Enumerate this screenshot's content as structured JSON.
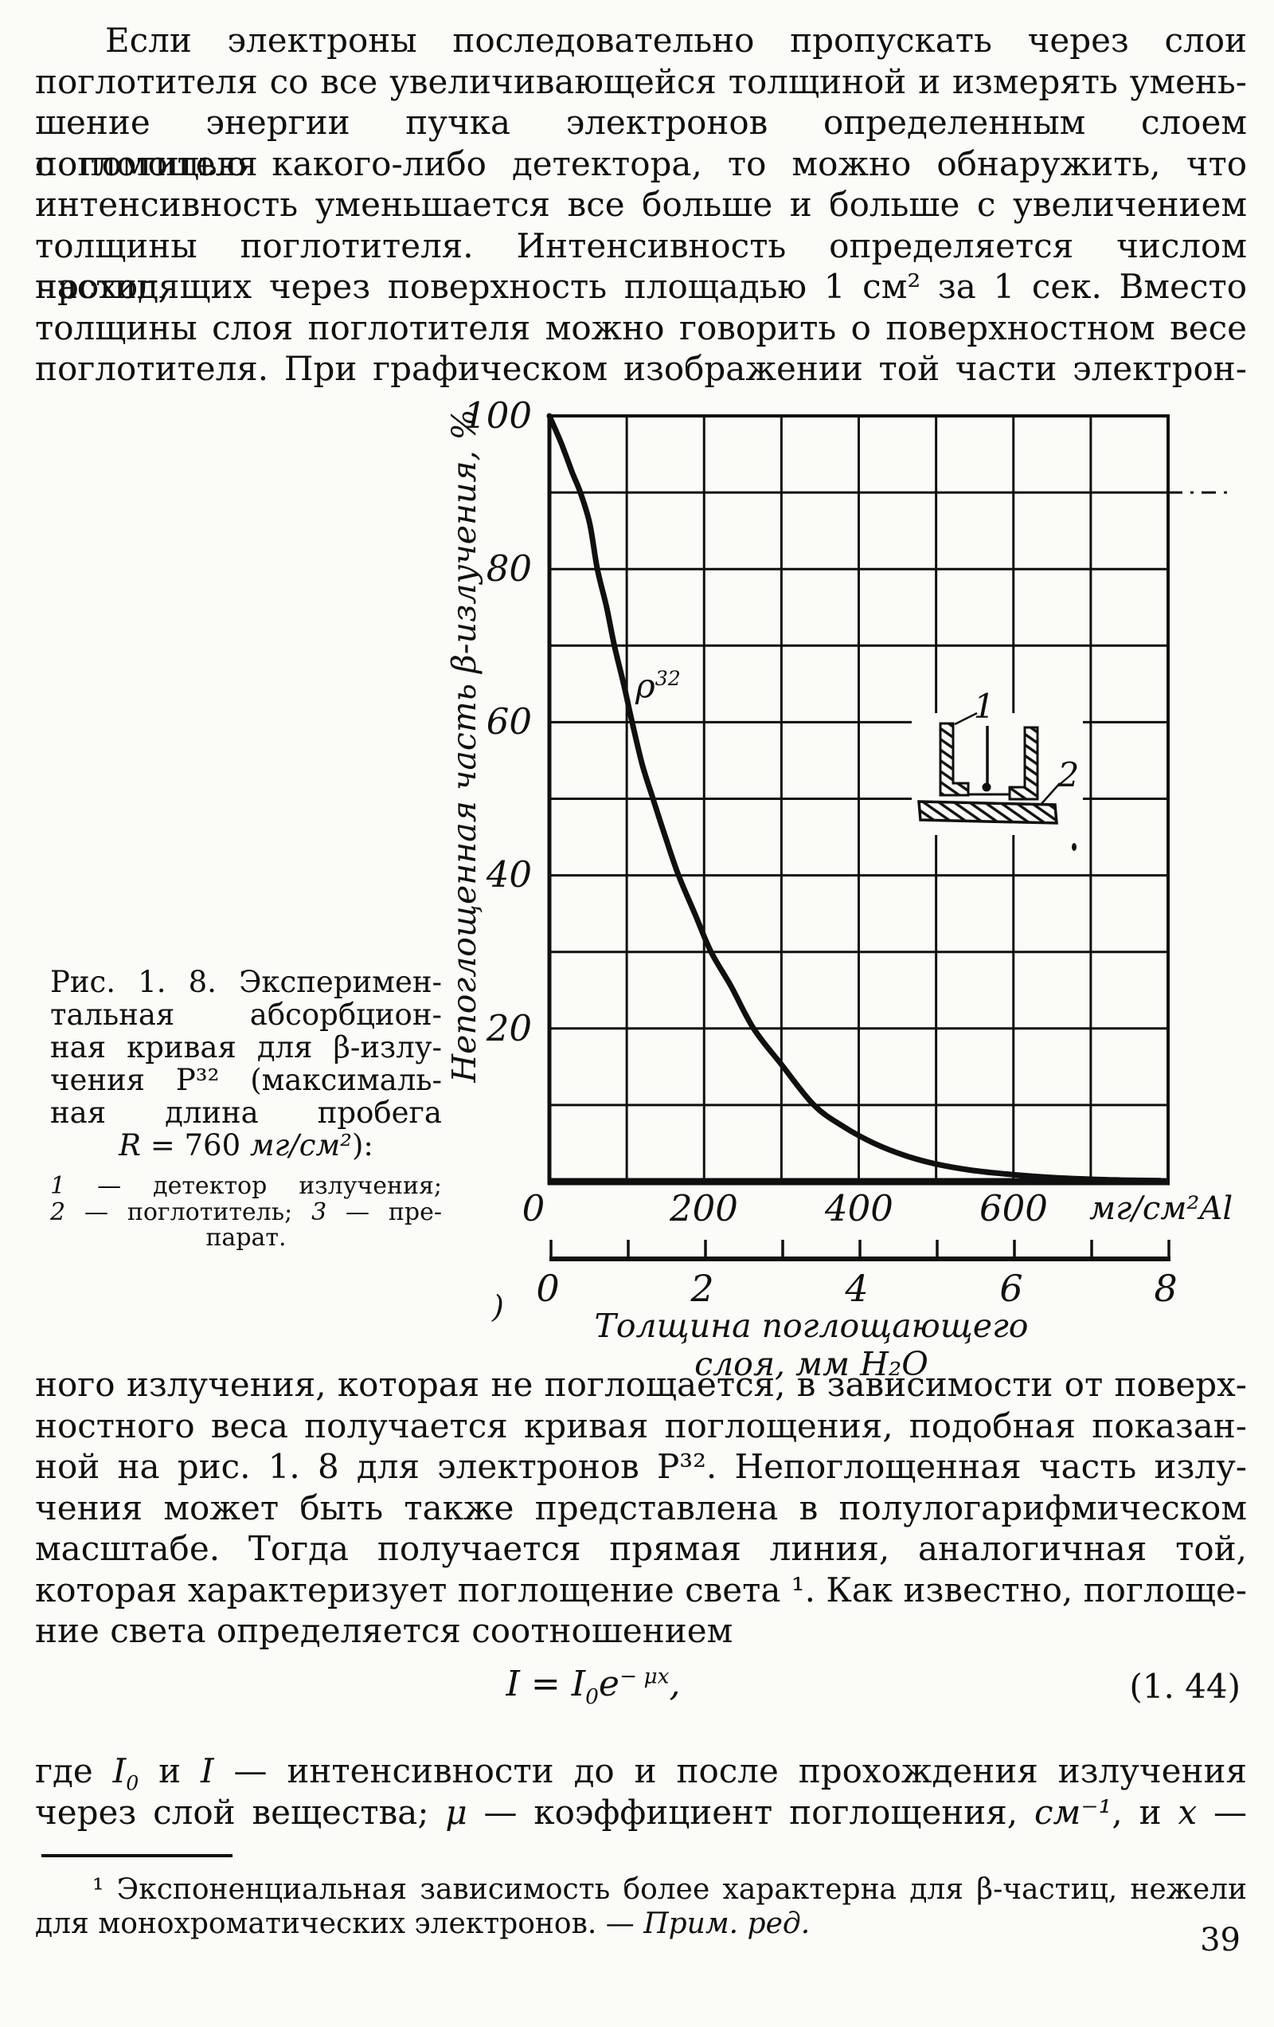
{
  "paragraph1": {
    "lines": [
      "Если электроны последовательно пропускать через слои",
      "поглотителя со все увеличивающейся толщиной и измерять умень-",
      "шение энергии пучка электронов определенным слоем поглотителя",
      "с помощью какого-либо детектора, то можно обнаружить, что",
      "интенсивность уменьшается все больше и больше с увеличением",
      "толщины поглотителя. Интенсивность определяется числом частиц,",
      "проходящих через поверхность площадью 1 см² за 1 сек. Вместо",
      "толщины слоя поглотителя можно говорить о поверхностном весе",
      "поглотителя. При графическом изображении той части электрон-"
    ]
  },
  "figure": {
    "caption_lines": [
      "Рис. 1. 8. Эксперимен-",
      "тальная абсорбцион-",
      "ная кривая для β-излу-",
      "чения P³² (максималь-",
      "ная длина пробега"
    ],
    "caption_line_R": [
      {
        "t": "R",
        "s": "i"
      },
      {
        "t": " = 760 "
      },
      {
        "t": "мг/см²",
        "s": "i"
      },
      {
        "t": "):"
      }
    ],
    "legend_line1": [
      {
        "t": "1",
        "s": "i"
      },
      {
        "t": " — детектор излучения;"
      }
    ],
    "legend_line2": [
      {
        "t": "2",
        "s": "i"
      },
      {
        "t": " — поглотитель; "
      },
      {
        "t": "3",
        "s": "i"
      },
      {
        "t": " — пре-"
      }
    ],
    "legend_line3": "парат."
  },
  "chart": {
    "chart_data": {
      "type": "line",
      "title": "",
      "xlabel": "мг/см²Al",
      "xlabel_bottom": "Толщина поглощающего слоя, мм Н₂O",
      "ylabel": "Непоглощенная часть β-излучения, %",
      "xlim": [
        0,
        800
      ],
      "ylim": [
        0,
        100
      ],
      "x2lim": [
        0,
        8
      ],
      "grid": true,
      "series": [
        {
          "name": "P32 beta absorption curve",
          "points": [
            [
              0,
              100
            ],
            [
              15,
              96.5
            ],
            [
              30,
              92.5
            ],
            [
              40,
              90
            ],
            [
              52,
              86
            ],
            [
              62,
              80
            ],
            [
              74,
              75
            ],
            [
              84,
              70
            ],
            [
              96,
              65
            ],
            [
              107,
              60
            ],
            [
              120,
              54.5
            ],
            [
              134,
              50
            ],
            [
              150,
              45
            ],
            [
              167,
              40
            ],
            [
              188,
              35
            ],
            [
              209,
              30
            ],
            [
              235,
              25.5
            ],
            [
              264,
              20
            ],
            [
              300,
              15.3
            ],
            [
              342,
              10
            ],
            [
              380,
              7.2
            ],
            [
              420,
              5
            ],
            [
              460,
              3.4
            ],
            [
              500,
              2.3
            ],
            [
              545,
              1.5
            ],
            [
              590,
              1.0
            ],
            [
              640,
              0.6
            ],
            [
              690,
              0.35
            ],
            [
              740,
              0.2
            ],
            [
              790,
              0.12
            ]
          ]
        }
      ],
      "y_tick_labels": [
        "100",
        "80",
        "60",
        "40",
        "20"
      ],
      "origin_label": "0",
      "x_tick_labels": [
        "200",
        "400",
        "600"
      ],
      "x2_tick_labels": [
        "0",
        "2",
        "4",
        "6",
        "8"
      ],
      "curve_label_base": "ρ",
      "curve_label_sup": "32",
      "inset_label_1": "1",
      "inset_label_2": "2",
      "stray_mark": ")"
    }
  },
  "paragraph2": {
    "lines": [
      "ного излучения, которая не поглощается, в зависимости от поверх-",
      "ностного веса получается кривая поглощения, подобная показан-",
      "ной на рис. 1. 8 для электронов P³². Непоглощенная часть излу-",
      "чения может быть также представлена в полулогарифмическом",
      "масштабе. Тогда получается прямая линия, аналогичная той,",
      "которая характеризует поглощение света ¹. Как известно, поглоще-",
      "ние света определяется соотношением"
    ]
  },
  "equation": {
    "formula": [
      {
        "t": "I = I",
        "s": "i"
      },
      {
        "t": "0",
        "s": "i sub"
      },
      {
        "t": "e",
        "s": "i"
      },
      {
        "t": "− μx",
        "s": "i sup"
      },
      {
        "t": ",",
        "s": "i"
      }
    ],
    "number": "(1. 44)"
  },
  "after_equation": {
    "line1": [
      {
        "t": "где "
      },
      {
        "t": "I",
        "s": "i"
      },
      {
        "t": "0",
        "s": "i sub"
      },
      {
        "t": " и "
      },
      {
        "t": "I",
        "s": "i"
      },
      {
        "t": " — интенсивности до и после прохождения излучения"
      }
    ],
    "line2": [
      {
        "t": "через слой вещества; "
      },
      {
        "t": "μ",
        "s": "i"
      },
      {
        "t": " — коэффициент поглощения, "
      },
      {
        "t": "см⁻¹",
        "s": "i"
      },
      {
        "t": ", и "
      },
      {
        "t": "x",
        "s": "i"
      },
      {
        "t": " —"
      }
    ]
  },
  "footnote": {
    "line1": "¹ Экспоненциальная зависимость более характерна для β-частиц, нежели",
    "line2": [
      {
        "t": "для монохроматических электронов. — "
      },
      {
        "t": "Прим. ред.",
        "s": "i"
      }
    ]
  },
  "page_number": "39"
}
